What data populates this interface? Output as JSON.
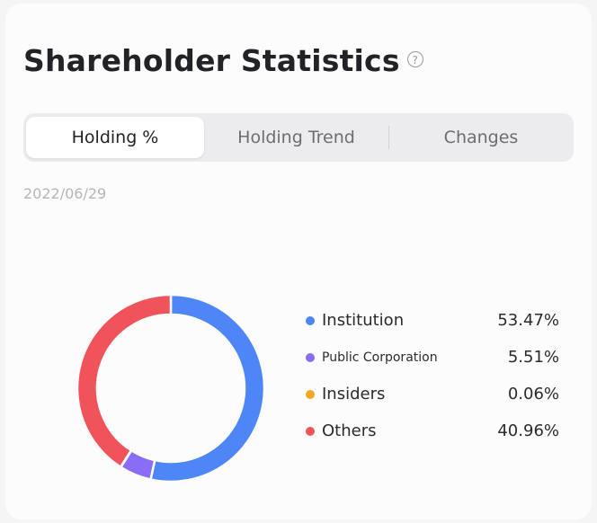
{
  "header": {
    "title": "Shareholder Statistics",
    "help_icon": "question-circle-icon"
  },
  "tabs": [
    {
      "label": "Holding %",
      "active": true
    },
    {
      "label": "Holding Trend",
      "active": false
    },
    {
      "label": "Changes",
      "active": false
    }
  ],
  "date": "2022/06/29",
  "chart_data": {
    "type": "pie",
    "donut": true,
    "categories": [
      "Institution",
      "Public Corporation",
      "Insiders",
      "Others"
    ],
    "values": [
      53.47,
      5.51,
      0.06,
      40.96
    ],
    "colors": [
      "#4f86f7",
      "#8b6cf5",
      "#f5a623",
      "#f0535a"
    ]
  },
  "legend": [
    {
      "label": "Institution",
      "value": "53.47%",
      "color": "#4f86f7"
    },
    {
      "label": "Public Corporation",
      "value": "5.51%",
      "color": "#8b6cf5"
    },
    {
      "label": "Insiders",
      "value": "0.06%",
      "color": "#f5a623"
    },
    {
      "label": "Others",
      "value": "40.96%",
      "color": "#f0535a"
    }
  ]
}
